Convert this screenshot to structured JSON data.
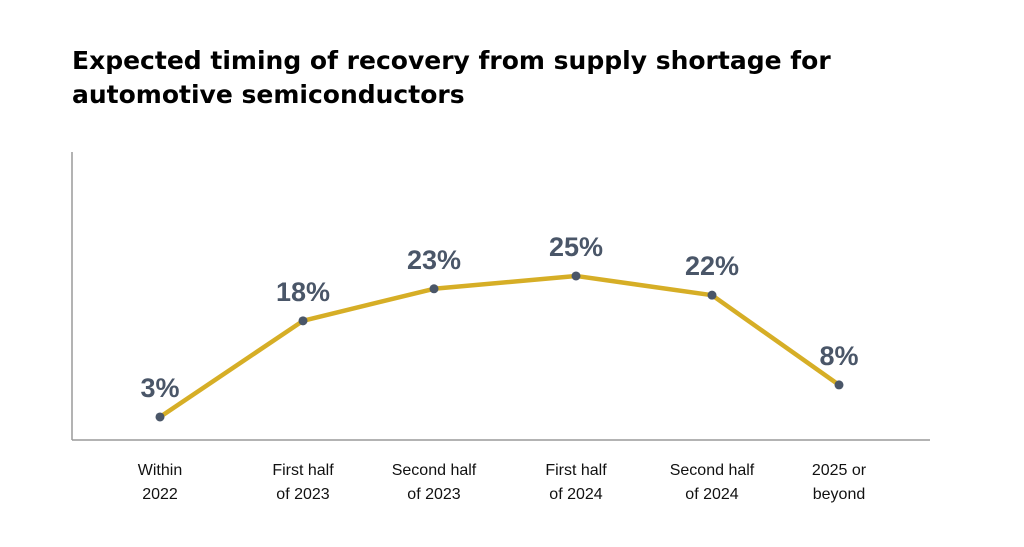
{
  "chart_data": {
    "type": "line",
    "title": "Expected timing of recovery from supply shortage for automotive semiconductors",
    "xlabel": "",
    "ylabel": "",
    "categories": [
      [
        "Within",
        "2022"
      ],
      [
        "First half",
        "of 2023"
      ],
      [
        "Second half",
        "of 2023"
      ],
      [
        "First half",
        "of 2024"
      ],
      [
        "Second half",
        "of 2024"
      ],
      [
        "2025 or",
        "beyond"
      ]
    ],
    "series": [
      {
        "values": [
          3,
          18,
          23,
          25,
          22,
          8
        ],
        "labels": [
          "3%",
          "18%",
          "23%",
          "25%",
          "22%",
          "8%"
        ]
      }
    ],
    "ylim": [
      0,
      30
    ],
    "grid": false,
    "legend": "none",
    "colors": {
      "line": "#D6AE26",
      "marker": "#4A5668",
      "value_label": "#4A5668",
      "axis": "#9A9A9A"
    }
  }
}
